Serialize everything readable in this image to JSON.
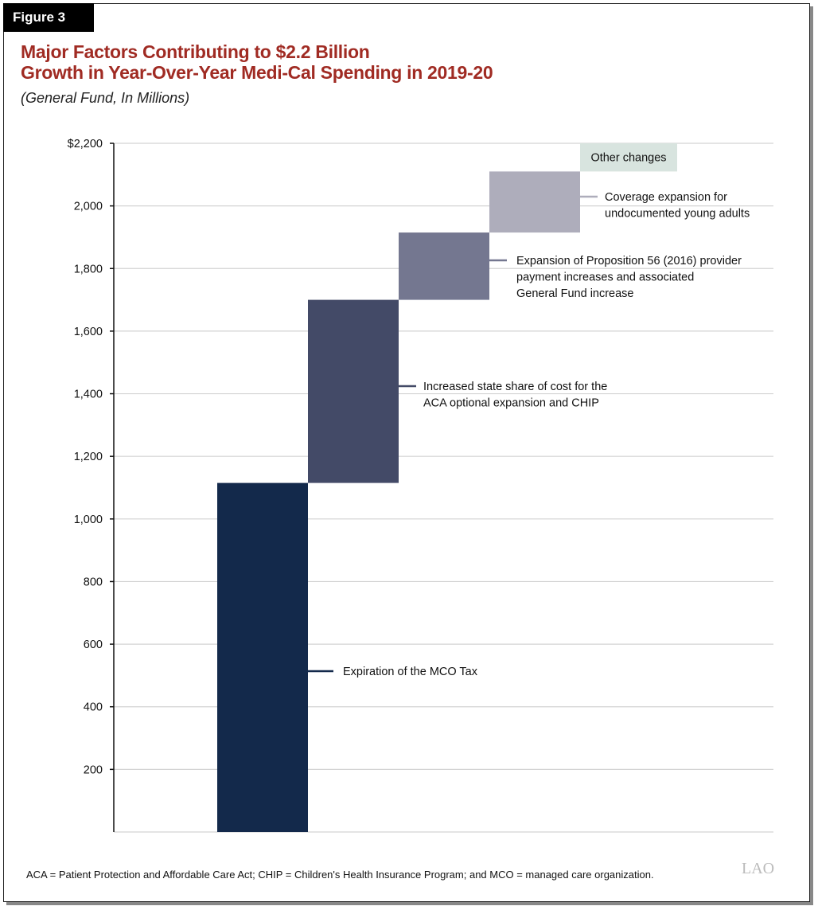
{
  "figure_label": "Figure 3",
  "title_line1": "Major Factors Contributing to $2.2 Billion",
  "title_line2": "Growth in Year-Over-Year Medi-Cal Spending in 2019-20",
  "subtitle": "(General Fund, In Millions)",
  "footnote": "ACA = Patient Protection and Affordable Care Act; CHIP = Children's Health Insurance Program; and MCO = managed care organization.",
  "logo": "LAO",
  "chart_data": {
    "type": "waterfall",
    "ylim": [
      0,
      2200
    ],
    "grid": true,
    "y_ticks": [
      {
        "value": 2200,
        "label": "$2,200"
      },
      {
        "value": 2000,
        "label": "2,000"
      },
      {
        "value": 1800,
        "label": "1,800"
      },
      {
        "value": 1600,
        "label": "1,600"
      },
      {
        "value": 1400,
        "label": "1,400"
      },
      {
        "value": 1200,
        "label": "1,200"
      },
      {
        "value": 1000,
        "label": "1,000"
      },
      {
        "value": 800,
        "label": "800"
      },
      {
        "value": 600,
        "label": "600"
      },
      {
        "value": 400,
        "label": "400"
      },
      {
        "value": 200,
        "label": "200"
      }
    ],
    "steps": [
      {
        "label": [
          "Expiration of the MCO Tax"
        ],
        "start": 0,
        "end": 1115,
        "color": "#13294b"
      },
      {
        "label": [
          "Increased state share of cost for the",
          "ACA optional expansion and CHIP"
        ],
        "start": 1115,
        "end": 1700,
        "color": "#434a67"
      },
      {
        "label": [
          "Expansion of Proposition 56 (2016) provider",
          "payment increases and associated",
          "General Fund increase"
        ],
        "start": 1700,
        "end": 1915,
        "color": "#747790"
      },
      {
        "label": [
          "Coverage expansion for",
          "undocumented young adults"
        ],
        "start": 1915,
        "end": 2110,
        "color": "#aeadbb"
      },
      {
        "label": [
          "Other changes"
        ],
        "start": 2110,
        "end": 2200,
        "color": "#d8e4df"
      }
    ]
  }
}
